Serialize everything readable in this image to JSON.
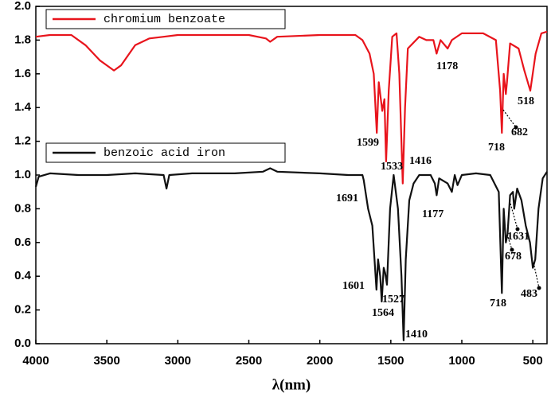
{
  "chart_data": {
    "type": "line",
    "x_label": "λ(nm)",
    "xlim": [
      4000,
      400
    ],
    "ylim": [
      0,
      2
    ],
    "xticks": [
      4000,
      3500,
      3000,
      2500,
      2000,
      1500,
      1000,
      500
    ],
    "yticks": [
      {
        "value": 0,
        "label": "0.0"
      },
      {
        "value": 0.2,
        "label": "0.2"
      },
      {
        "value": 0.4,
        "label": "0.4"
      },
      {
        "value": 0.6,
        "label": "0.6"
      },
      {
        "value": 0.8,
        "label": "0.8"
      },
      {
        "value": 1.0,
        "label": "1.0"
      },
      {
        "value": 1.2,
        "label": "1.2"
      },
      {
        "value": 1.4,
        "label": "1.4"
      },
      {
        "value": 1.6,
        "label": "1.6"
      },
      {
        "value": 1.8,
        "label": "1.8"
      },
      {
        "value": 2.0,
        "label": "2.0"
      }
    ],
    "series": [
      {
        "name": "chromium benzoate",
        "color": "#e8141c",
        "x": [
          4000,
          3900,
          3750,
          3650,
          3550,
          3450,
          3400,
          3300,
          3200,
          3100,
          3000,
          2800,
          2500,
          2380,
          2350,
          2300,
          2000,
          1750,
          1700,
          1650,
          1620,
          1599,
          1585,
          1560,
          1545,
          1533,
          1515,
          1490,
          1460,
          1440,
          1416,
          1400,
          1380,
          1300,
          1250,
          1200,
          1178,
          1150,
          1100,
          1070,
          1000,
          850,
          760,
          730,
          718,
          705,
          690,
          682,
          660,
          600,
          560,
          518,
          480,
          440,
          400
        ],
        "values": [
          1.82,
          1.83,
          1.83,
          1.77,
          1.68,
          1.62,
          1.65,
          1.77,
          1.81,
          1.82,
          1.83,
          1.83,
          1.83,
          1.81,
          1.79,
          1.82,
          1.83,
          1.83,
          1.8,
          1.72,
          1.6,
          1.25,
          1.55,
          1.38,
          1.45,
          1.08,
          1.5,
          1.82,
          1.84,
          1.6,
          0.95,
          1.4,
          1.75,
          1.82,
          1.8,
          1.8,
          1.72,
          1.8,
          1.75,
          1.8,
          1.84,
          1.84,
          1.8,
          1.5,
          1.25,
          1.6,
          1.48,
          1.55,
          1.78,
          1.75,
          1.62,
          1.5,
          1.72,
          1.84,
          1.85
        ]
      },
      {
        "name": "benzoic acid iron",
        "color": "#111111",
        "x": [
          4000,
          3980,
          3900,
          3700,
          3500,
          3300,
          3100,
          3080,
          3060,
          2900,
          2600,
          2400,
          2350,
          2300,
          2000,
          1800,
          1700,
          1691,
          1660,
          1630,
          1601,
          1590,
          1575,
          1564,
          1550,
          1540,
          1527,
          1505,
          1480,
          1450,
          1425,
          1410,
          1395,
          1370,
          1340,
          1300,
          1220,
          1190,
          1177,
          1160,
          1100,
          1070,
          1050,
          1030,
          1000,
          900,
          800,
          740,
          718,
          705,
          690,
          678,
          660,
          640,
          631,
          610,
          580,
          550,
          520,
          500,
          483,
          460,
          430,
          400
        ],
        "values": [
          0.93,
          0.99,
          1.01,
          1.0,
          1.0,
          1.01,
          1.0,
          0.92,
          1.0,
          1.01,
          1.01,
          1.02,
          1.04,
          1.02,
          1.01,
          1.0,
          1.0,
          0.97,
          0.8,
          0.7,
          0.32,
          0.5,
          0.4,
          0.25,
          0.45,
          0.42,
          0.35,
          0.8,
          1.0,
          0.8,
          0.4,
          0.02,
          0.5,
          0.85,
          0.95,
          1.0,
          1.0,
          0.95,
          0.88,
          0.98,
          0.95,
          0.9,
          1.0,
          0.94,
          1.0,
          1.01,
          1.0,
          0.9,
          0.3,
          0.8,
          0.6,
          0.65,
          0.88,
          0.9,
          0.8,
          0.92,
          0.85,
          0.7,
          0.6,
          0.45,
          0.5,
          0.8,
          0.98,
          1.02
        ]
      }
    ],
    "annotations": [
      "1599",
      "1533",
      "1416",
      "1178",
      "718",
      "682",
      "518",
      "1691",
      "1177",
      "1631",
      "678",
      "1601",
      "1564",
      "1527",
      "1410",
      "718",
      "483"
    ]
  }
}
